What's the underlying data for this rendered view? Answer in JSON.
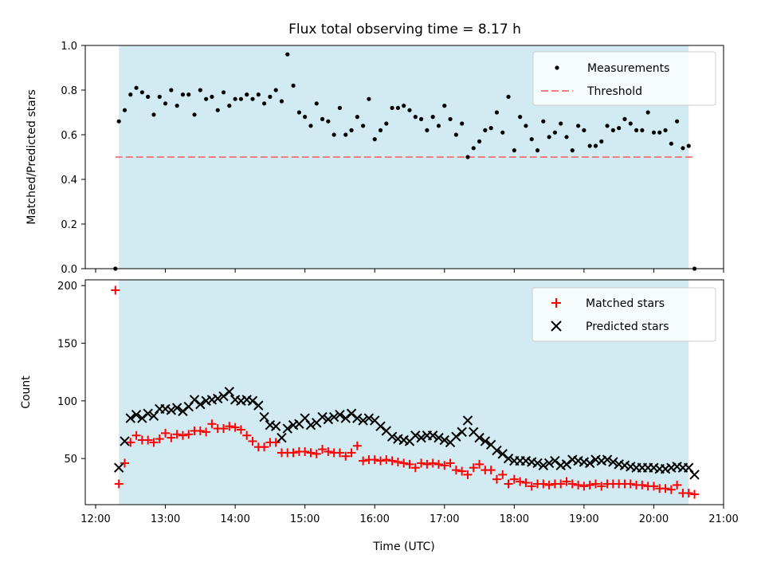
{
  "chart_data": [
    {
      "type": "scatter",
      "title": "Flux total observing time = 8.17 h",
      "xlabel": "",
      "ylabel": "Matched/Predicted stars",
      "xlim": [
        "12:00",
        "21:00"
      ],
      "ylim": [
        0,
        1.0
      ],
      "yticks": [
        "0.0",
        "0.2",
        "0.4",
        "0.6",
        "0.8",
        "1.0"
      ],
      "shaded_interval": [
        "12:20",
        "20:30"
      ],
      "shade_color": "#add8e6",
      "legend": "top-right",
      "series": [
        {
          "name": "Measurements",
          "marker": "dot",
          "color": "#000000",
          "x": [
            "12:17",
            "12:20",
            "12:25",
            "12:30",
            "12:35",
            "12:40",
            "12:45",
            "12:50",
            "12:55",
            "13:00",
            "13:05",
            "13:10",
            "13:15",
            "13:20",
            "13:25",
            "13:30",
            "13:35",
            "13:40",
            "13:45",
            "13:50",
            "13:55",
            "14:00",
            "14:05",
            "14:10",
            "14:15",
            "14:20",
            "14:25",
            "14:30",
            "14:35",
            "14:40",
            "14:45",
            "14:50",
            "14:55",
            "15:00",
            "15:05",
            "15:10",
            "15:15",
            "15:20",
            "15:25",
            "15:30",
            "15:35",
            "15:40",
            "15:45",
            "15:50",
            "15:55",
            "16:00",
            "16:05",
            "16:10",
            "16:15",
            "16:20",
            "16:25",
            "16:30",
            "16:35",
            "16:40",
            "16:45",
            "16:50",
            "16:55",
            "17:00",
            "17:05",
            "17:10",
            "17:15",
            "17:20",
            "17:25",
            "17:30",
            "17:35",
            "17:40",
            "17:45",
            "17:50",
            "17:55",
            "18:00",
            "18:05",
            "18:10",
            "18:15",
            "18:20",
            "18:25",
            "18:30",
            "18:35",
            "18:40",
            "18:45",
            "18:50",
            "18:55",
            "19:00",
            "19:05",
            "19:10",
            "19:15",
            "19:20",
            "19:25",
            "19:30",
            "19:35",
            "19:40",
            "19:45",
            "19:50",
            "19:55",
            "20:00",
            "20:05",
            "20:10",
            "20:15",
            "20:20",
            "20:25",
            "20:30",
            "20:35"
          ],
          "values": [
            0.0,
            0.66,
            0.71,
            0.78,
            0.81,
            0.79,
            0.77,
            0.69,
            0.77,
            0.74,
            0.8,
            0.73,
            0.78,
            0.78,
            0.69,
            0.8,
            0.76,
            0.77,
            0.71,
            0.79,
            0.73,
            0.76,
            0.76,
            0.78,
            0.76,
            0.78,
            0.74,
            0.77,
            0.8,
            0.75,
            0.96,
            0.82,
            0.7,
            0.68,
            0.64,
            0.74,
            0.67,
            0.66,
            0.6,
            0.72,
            0.6,
            0.62,
            0.68,
            0.64,
            0.76,
            0.58,
            0.62,
            0.65,
            0.72,
            0.72,
            0.73,
            0.71,
            0.68,
            0.67,
            0.62,
            0.68,
            0.64,
            0.73,
            0.67,
            0.6,
            0.65,
            0.5,
            0.54,
            0.57,
            0.62,
            0.63,
            0.7,
            0.61,
            0.77,
            0.53,
            0.68,
            0.64,
            0.58,
            0.53,
            0.66,
            0.59,
            0.61,
            0.65,
            0.59,
            0.53,
            0.64,
            0.62,
            0.55,
            0.55,
            0.57,
            0.64,
            0.62,
            0.63,
            0.67,
            0.65,
            0.62,
            0.62,
            0.7,
            0.61,
            0.61,
            0.62,
            0.56,
            0.66,
            0.54,
            0.55,
            0.0
          ]
        },
        {
          "name": "Threshold",
          "style": "dashed",
          "color": "#f08080",
          "x": [
            "12:17",
            "20:35"
          ],
          "values": [
            0.5,
            0.5
          ]
        }
      ]
    },
    {
      "type": "scatter",
      "xlabel": "Time (UTC)",
      "ylabel": "Count",
      "xlim": [
        "12:00",
        "21:00"
      ],
      "xticks": [
        "12:00",
        "13:00",
        "14:00",
        "15:00",
        "16:00",
        "17:00",
        "18:00",
        "19:00",
        "20:00",
        "21:00"
      ],
      "ylim": [
        10,
        205
      ],
      "yticks": [
        "50",
        "100",
        "150",
        "200"
      ],
      "shaded_interval": [
        "12:20",
        "20:30"
      ],
      "shade_color": "#add8e6",
      "legend": "top-right",
      "series": [
        {
          "name": "Matched stars",
          "marker": "plus",
          "color": "#ff0000",
          "x": [
            "12:17",
            "12:20",
            "12:25",
            "12:30",
            "12:35",
            "12:40",
            "12:45",
            "12:50",
            "12:55",
            "13:00",
            "13:05",
            "13:10",
            "13:15",
            "13:20",
            "13:25",
            "13:30",
            "13:35",
            "13:40",
            "13:45",
            "13:50",
            "13:55",
            "14:00",
            "14:05",
            "14:10",
            "14:15",
            "14:20",
            "14:25",
            "14:30",
            "14:35",
            "14:40",
            "14:45",
            "14:50",
            "14:55",
            "15:00",
            "15:05",
            "15:10",
            "15:15",
            "15:20",
            "15:25",
            "15:30",
            "15:35",
            "15:40",
            "15:45",
            "15:50",
            "15:55",
            "16:00",
            "16:05",
            "16:10",
            "16:15",
            "16:20",
            "16:25",
            "16:30",
            "16:35",
            "16:40",
            "16:45",
            "16:50",
            "16:55",
            "17:00",
            "17:05",
            "17:10",
            "17:15",
            "17:20",
            "17:25",
            "17:30",
            "17:35",
            "17:40",
            "17:45",
            "17:50",
            "17:55",
            "18:00",
            "18:05",
            "18:10",
            "18:15",
            "18:20",
            "18:25",
            "18:30",
            "18:35",
            "18:40",
            "18:45",
            "18:50",
            "18:55",
            "19:00",
            "19:05",
            "19:10",
            "19:15",
            "19:20",
            "19:25",
            "19:30",
            "19:35",
            "19:40",
            "19:45",
            "19:50",
            "19:55",
            "20:00",
            "20:05",
            "20:10",
            "20:15",
            "20:20",
            "20:25",
            "20:30",
            "20:35"
          ],
          "values": [
            196,
            28,
            46,
            64,
            70,
            66,
            66,
            64,
            67,
            72,
            68,
            71,
            70,
            71,
            74,
            74,
            73,
            80,
            76,
            76,
            78,
            77,
            75,
            70,
            65,
            60,
            60,
            64,
            64,
            55,
            55,
            55,
            56,
            56,
            55,
            54,
            58,
            56,
            55,
            55,
            52,
            55,
            61,
            48,
            49,
            49,
            48,
            49,
            48,
            47,
            46,
            45,
            42,
            46,
            45,
            46,
            45,
            44,
            46,
            40,
            39,
            36,
            42,
            45,
            40,
            40,
            32,
            36,
            28,
            32,
            30,
            29,
            26,
            28,
            28,
            27,
            28,
            28,
            30,
            28,
            27,
            26,
            27,
            28,
            26,
            28,
            28,
            28,
            28,
            28,
            27,
            27,
            26,
            26,
            24,
            24,
            23,
            27,
            20,
            20,
            19
          ]
        },
        {
          "name": "Predicted stars",
          "marker": "x",
          "color": "#000000",
          "x": [
            "12:20",
            "12:25",
            "12:30",
            "12:35",
            "12:40",
            "12:45",
            "12:50",
            "12:55",
            "13:00",
            "13:05",
            "13:10",
            "13:15",
            "13:20",
            "13:25",
            "13:30",
            "13:35",
            "13:40",
            "13:45",
            "13:50",
            "13:55",
            "14:00",
            "14:05",
            "14:10",
            "14:15",
            "14:20",
            "14:25",
            "14:30",
            "14:35",
            "14:40",
            "14:45",
            "14:50",
            "14:55",
            "15:00",
            "15:05",
            "15:10",
            "15:15",
            "15:20",
            "15:25",
            "15:30",
            "15:35",
            "15:40",
            "15:45",
            "15:50",
            "15:55",
            "16:00",
            "16:05",
            "16:10",
            "16:15",
            "16:20",
            "16:25",
            "16:30",
            "16:35",
            "16:40",
            "16:45",
            "16:50",
            "16:55",
            "17:00",
            "17:05",
            "17:10",
            "17:15",
            "17:20",
            "17:25",
            "17:30",
            "17:35",
            "17:40",
            "17:45",
            "17:50",
            "17:55",
            "18:00",
            "18:05",
            "18:10",
            "18:15",
            "18:20",
            "18:25",
            "18:30",
            "18:35",
            "18:40",
            "18:45",
            "18:50",
            "18:55",
            "19:00",
            "19:05",
            "19:10",
            "19:15",
            "19:20",
            "19:25",
            "19:30",
            "19:35",
            "19:40",
            "19:45",
            "19:50",
            "19:55",
            "20:00",
            "20:05",
            "20:10",
            "20:15",
            "20:20",
            "20:25",
            "20:30",
            "20:35"
          ],
          "values": [
            42,
            65,
            85,
            88,
            85,
            89,
            87,
            93,
            93,
            92,
            94,
            91,
            95,
            101,
            97,
            100,
            101,
            102,
            104,
            108,
            101,
            100,
            101,
            100,
            96,
            86,
            79,
            78,
            68,
            76,
            79,
            80,
            85,
            79,
            81,
            86,
            84,
            86,
            88,
            85,
            89,
            85,
            83,
            85,
            83,
            78,
            74,
            69,
            67,
            66,
            65,
            70,
            68,
            70,
            70,
            68,
            66,
            64,
            69,
            73,
            83,
            73,
            68,
            65,
            62,
            57,
            54,
            50,
            48,
            48,
            48,
            47,
            46,
            44,
            46,
            48,
            44,
            45,
            49,
            48,
            47,
            46,
            49,
            48,
            49,
            47,
            45,
            44,
            43,
            42,
            42,
            42,
            42,
            41,
            41,
            42,
            43,
            42,
            42,
            36
          ]
        }
      ]
    }
  ]
}
